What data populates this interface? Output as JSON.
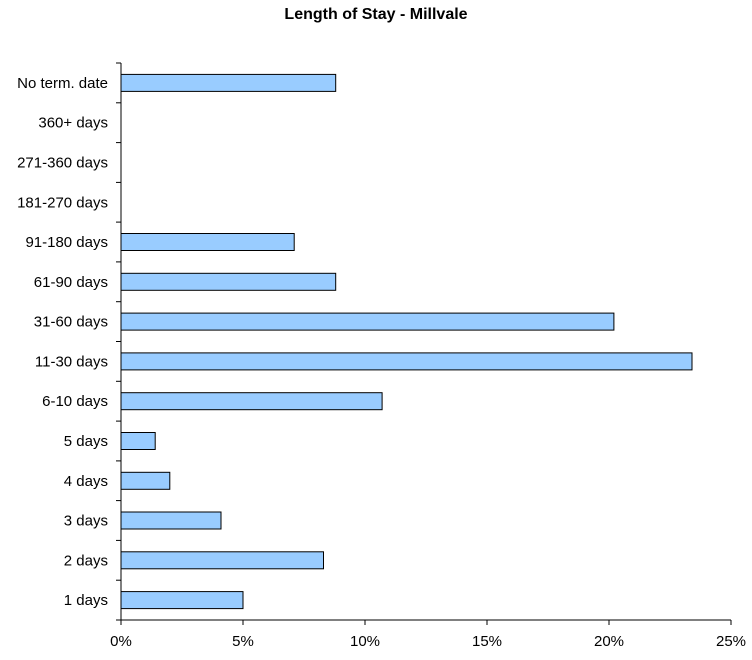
{
  "chart_data": {
    "type": "bar",
    "orientation": "horizontal",
    "title": "Length of Stay - Millvale",
    "xlabel": "",
    "ylabel": "",
    "categories": [
      "1 days",
      "2 days",
      "3 days",
      "4 days",
      "5 days",
      "6-10 days",
      "11-30 days",
      "31-60 days",
      "61-90 days",
      "91-180 days",
      "181-270 days",
      "271-360 days",
      "360+ days",
      "No term. date"
    ],
    "values": [
      5.0,
      8.3,
      4.1,
      2.0,
      1.4,
      10.7,
      23.4,
      20.2,
      8.8,
      7.1,
      0,
      0,
      0,
      8.8
    ],
    "xlim": [
      0,
      25
    ],
    "xticks": [
      0,
      5,
      10,
      15,
      20,
      25
    ],
    "xtick_labels": [
      "0%",
      "5%",
      "10%",
      "15%",
      "20%",
      "25%"
    ],
    "grid": false,
    "legend": "none",
    "bar_color": "#99ccff",
    "bar_edge_color": "#000000"
  }
}
